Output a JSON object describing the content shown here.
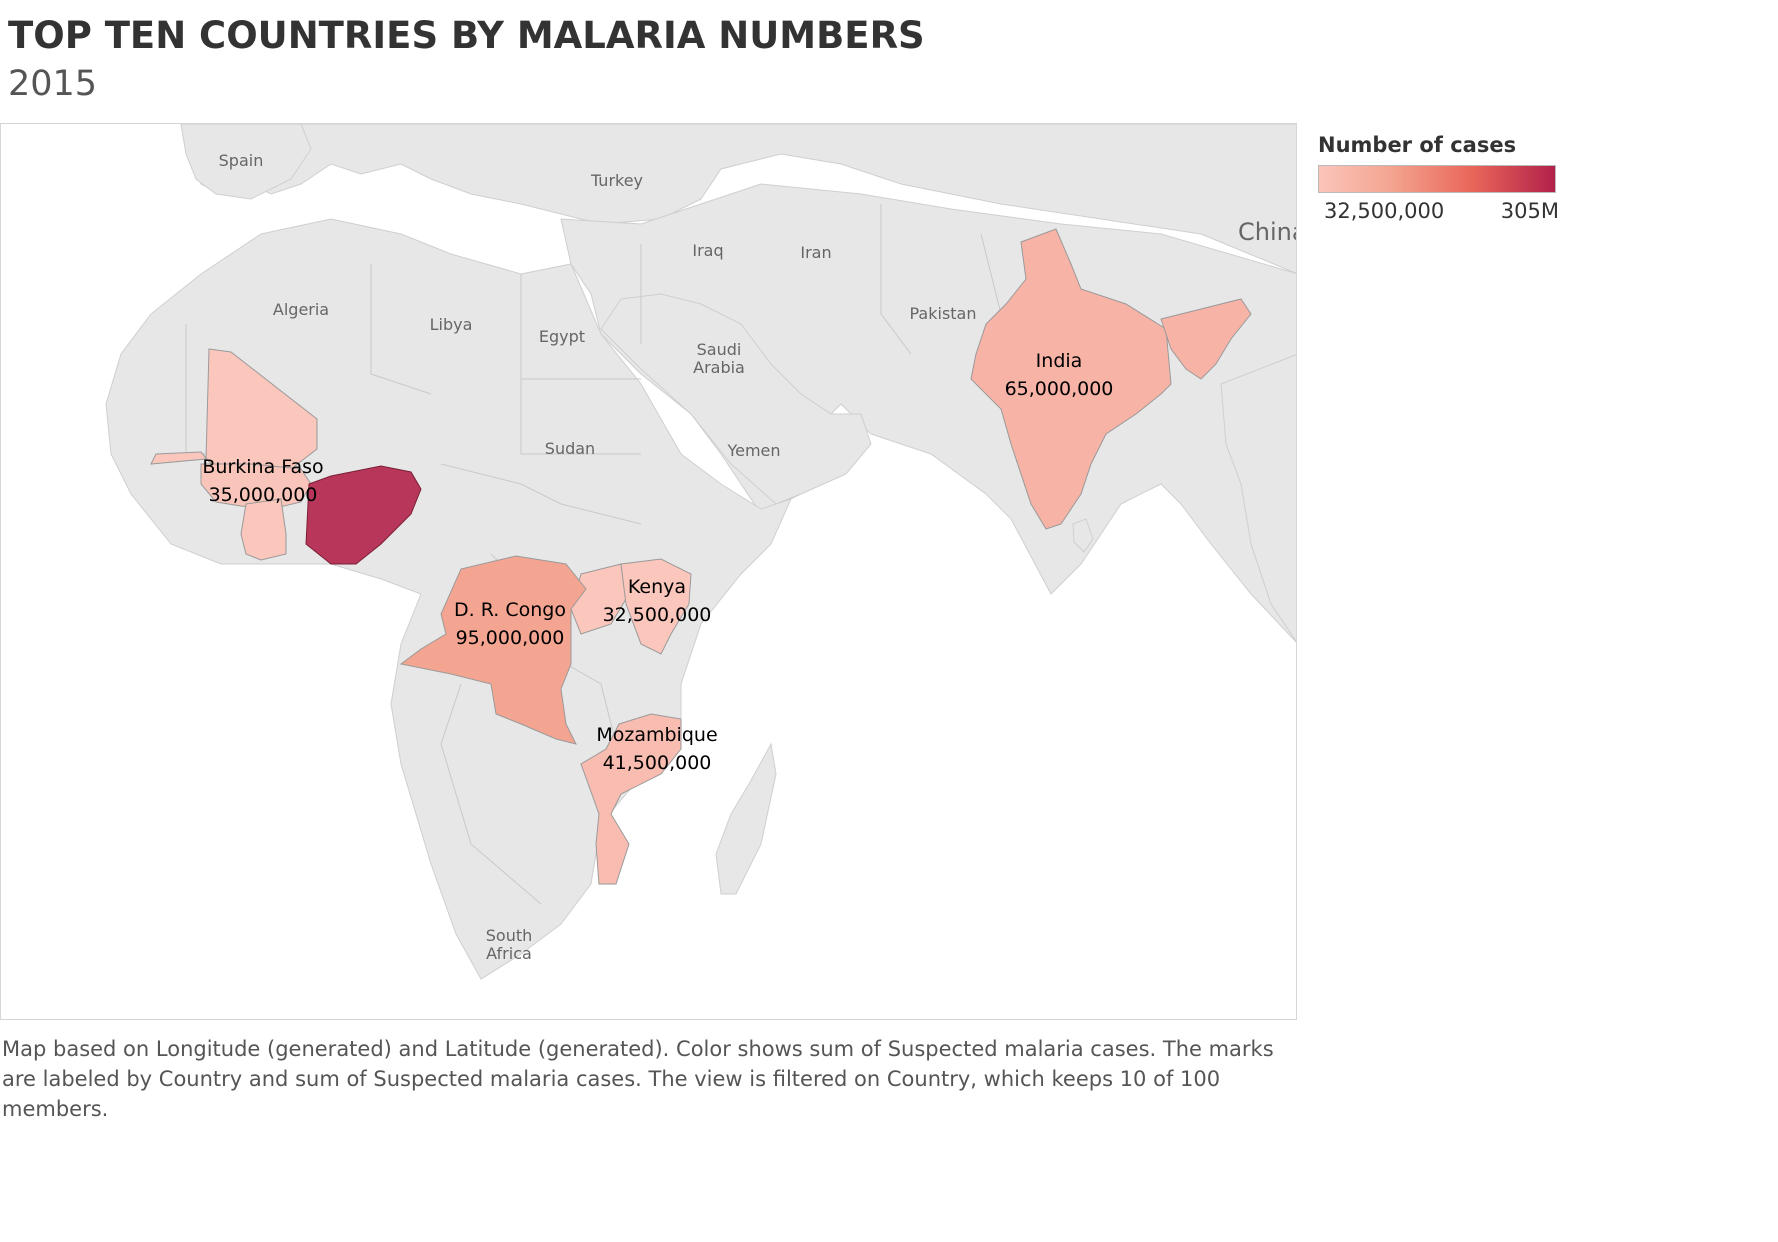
{
  "title": "TOP TEN COUNTRIES BY MALARIA NUMBERS",
  "subtitle": "2015",
  "legend": {
    "title": "Number of cases",
    "min_label": "32,500,000",
    "max_label": "305M",
    "color_min": "#fbc4bb",
    "color_max": "#b1214a"
  },
  "base_labels": {
    "spain": "Spain",
    "turkey": "Turkey",
    "china": "China",
    "iraq": "Iraq",
    "iran": "Iran",
    "algeria": "Algeria",
    "libya": "Libya",
    "egypt": "Egypt",
    "pakistan": "Pakistan",
    "saudi_1": "Saudi",
    "saudi_2": "Arabia",
    "sudan": "Sudan",
    "yemen": "Yemen",
    "india_base": "India",
    "south_1": "South",
    "south_2": "Africa"
  },
  "marks": {
    "india": {
      "country": "India",
      "value": "65,000,000",
      "color": "#f6b3a6"
    },
    "burkina": {
      "country": "Burkina Faso",
      "value": "35,000,000",
      "color": "#f9c4b9"
    },
    "drc": {
      "country": "D. R. Congo",
      "value": "95,000,000",
      "color": "#f4a591"
    },
    "kenya": {
      "country": "Kenya",
      "value": "32,500,000",
      "color": "#fbc6bc"
    },
    "mozambique": {
      "country": "Mozambique",
      "value": "41,500,000",
      "color": "#f8bcb0"
    },
    "nigeria": {
      "color": "#b8365a"
    },
    "mali": {
      "color": "#fbc6bc"
    },
    "ghana": {
      "color": "#fbc6bc"
    },
    "uganda": {
      "color": "#fbc6bc"
    },
    "bangladesh_myanmar": {
      "color": "#f6b3a6"
    }
  },
  "map_colors": {
    "water": "#ffffff",
    "land": "#e7e7e7",
    "border": "#c9c9c9"
  },
  "caption": "Map based on Longitude (generated) and Latitude (generated).  Color shows sum of Suspected malaria cases.  The marks are labeled by Country and sum of Suspected malaria cases. The view is filtered on Country, which keeps 10 of 100 members."
}
